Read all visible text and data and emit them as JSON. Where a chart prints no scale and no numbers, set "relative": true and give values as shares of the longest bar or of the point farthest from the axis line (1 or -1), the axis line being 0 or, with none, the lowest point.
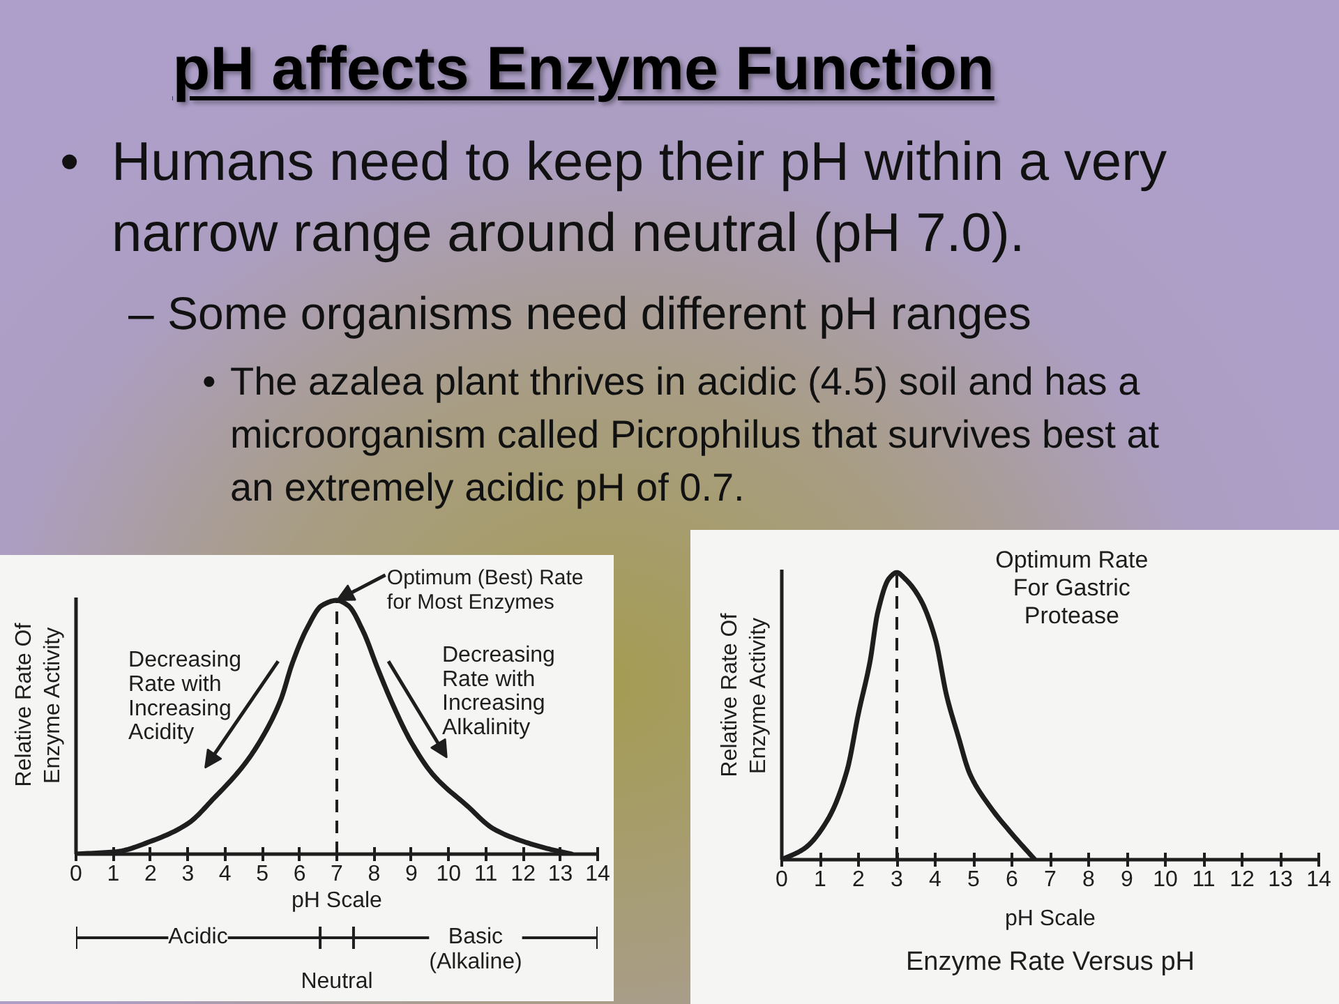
{
  "chart_data": [
    {
      "type": "other",
      "title": "pH affects Enzyme Function",
      "annotations": [
        "• Humans need to keep their pH within a very\nnarrow range around neutral (pH 7.0).",
        "– Some organisms need different pH ranges",
        "• The azalea plant thrives in acidic (4.5) soil and has a\nmicroorganism called Picrophilus that survives best at\nan extremely acidic pH of 0.7."
      ]
    },
    {
      "type": "line",
      "relative": true,
      "xlabel": "pH Scale",
      "ylabel": "Relative Rate Of\nEnzyme Activity",
      "xlim": [
        0,
        14
      ],
      "xticks": [
        0,
        1,
        2,
        3,
        4,
        5,
        6,
        7,
        8,
        9,
        10,
        11,
        12,
        13,
        14
      ],
      "x": [
        0,
        1.1,
        2,
        3,
        3.7,
        4.5,
        5,
        5.5,
        5.8,
        6.2,
        6.6,
        7,
        7.3,
        7.7,
        8.1,
        8.5,
        9,
        9.6,
        10.5,
        11.2,
        12,
        12.7,
        13.3
      ],
      "series": [
        {
          "color": "#1e1e1e",
          "values": [
            0,
            0.01,
            0.05,
            0.12,
            0.22,
            0.35,
            0.46,
            0.61,
            0.75,
            0.89,
            0.98,
            1,
            0.98,
            0.88,
            0.73,
            0.59,
            0.44,
            0.31,
            0.19,
            0.1,
            0.05,
            0.02,
            0
          ]
        }
      ],
      "ref_lines": [
        {
          "axis": "x",
          "value": 7,
          "line_style": "dashed",
          "color": "#1e1e1e"
        }
      ],
      "annotations": [
        {
          "text": "Optimum (Best) Rate\nfor Most Enzymes",
          "x": 7,
          "y": 1
        },
        {
          "text": "Decreasing\nRate with\nIncreasing\nAcidity",
          "x": 4.5,
          "y": 0.35
        },
        {
          "text": "Decreasing\nRate with\nIncreasing\nAlkalinity",
          "x": 9,
          "y": 0.44
        },
        "Acidic",
        "Neutral",
        "Basic\n(Alkaline)"
      ]
    },
    {
      "type": "line",
      "relative": true,
      "title": "Enzyme Rate Versus pH",
      "xlabel": "pH Scale",
      "ylabel": "Relative Rate Of\nEnzyme Activity",
      "xlim": [
        0,
        14
      ],
      "xticks": [
        0,
        1,
        2,
        3,
        4,
        5,
        6,
        7,
        8,
        9,
        10,
        11,
        12,
        13,
        14
      ],
      "x": [
        0,
        0.6,
        1.2,
        1.7,
        2,
        2.3,
        2.5,
        2.8,
        3,
        3.2,
        3.6,
        4,
        4.3,
        4.6,
        4.9,
        5.4,
        6,
        6.6
      ],
      "series": [
        {
          "color": "#1e1e1e",
          "values": [
            0,
            0.04,
            0.14,
            0.31,
            0.51,
            0.69,
            0.86,
            0.98,
            1,
            0.98,
            0.91,
            0.77,
            0.57,
            0.43,
            0.3,
            0.19,
            0.09,
            0
          ]
        }
      ],
      "ref_lines": [
        {
          "axis": "x",
          "value": 3,
          "line_style": "dashed",
          "color": "#1e1e1e"
        }
      ],
      "annotations": [
        "Optimum Rate\nFor Gastric\nProtease"
      ]
    }
  ]
}
